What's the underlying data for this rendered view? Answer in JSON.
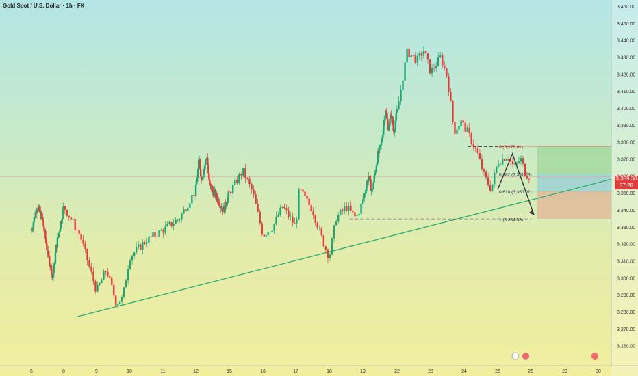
{
  "title": "Gold Spot / U.S. Dollar · 1h · FX",
  "colors": {
    "up": "#1ea672",
    "down": "#e23b3b",
    "trend": "#2eaa6f",
    "fib_zero": "#d9534f"
  },
  "chart_data": {
    "type": "candlestick",
    "title": "Gold Spot / U.S. Dollar · 1h · FX",
    "y_ticks": [
      "3,460.00",
      "3,450.00",
      "3,440.00",
      "3,430.00",
      "3,420.00",
      "3,410.00",
      "3,400.00",
      "3,390.00",
      "3,380.00",
      "3,370.00",
      "3,360.00",
      "3,350.00",
      "3,340.00",
      "3,330.00",
      "3,320.00",
      "3,310.00",
      "3,300.00",
      "3,290.00",
      "3,280.00",
      "3,270.00",
      "3,260.00"
    ],
    "x_ticks": [
      "5",
      "8",
      "9",
      "10",
      "11",
      "12",
      "15",
      "16",
      "17",
      "18",
      "19",
      "22",
      "23",
      "24",
      "25",
      "26",
      "29",
      "30"
    ],
    "ylim": [
      3255,
      3462
    ],
    "price_path": [
      {
        "d": 5.0,
        "p": 3328
      },
      {
        "d": 5.5,
        "p": 3342
      },
      {
        "d": 6.0,
        "p": 3335
      },
      {
        "d": 6.5,
        "p": 3315
      },
      {
        "d": 7.0,
        "p": 3300
      },
      {
        "d": 7.3,
        "p": 3318
      },
      {
        "d": 8.0,
        "p": 3342
      },
      {
        "d": 8.5,
        "p": 3325
      },
      {
        "d": 9.0,
        "p": 3292
      },
      {
        "d": 9.3,
        "p": 3305
      },
      {
        "d": 9.6,
        "p": 3285
      },
      {
        "d": 9.8,
        "p": 3288
      },
      {
        "d": 10.0,
        "p": 3312
      },
      {
        "d": 10.5,
        "p": 3322
      },
      {
        "d": 11.0,
        "p": 3328
      },
      {
        "d": 11.5,
        "p": 3335
      },
      {
        "d": 12.0,
        "p": 3352
      },
      {
        "d": 12.3,
        "p": 3370
      },
      {
        "d": 12.5,
        "p": 3358
      },
      {
        "d": 12.8,
        "p": 3366
      },
      {
        "d": 13.0,
        "p": 3372
      },
      {
        "d": 13.2,
        "p": 3355
      },
      {
        "d": 14.5,
        "p": 3340
      },
      {
        "d": 15.0,
        "p": 3350
      },
      {
        "d": 15.4,
        "p": 3363
      },
      {
        "d": 15.7,
        "p": 3350
      },
      {
        "d": 16.0,
        "p": 3325
      },
      {
        "d": 16.3,
        "p": 3330
      },
      {
        "d": 16.6,
        "p": 3342
      },
      {
        "d": 17.0,
        "p": 3330
      },
      {
        "d": 17.1,
        "p": 3352
      },
      {
        "d": 17.5,
        "p": 3340
      },
      {
        "d": 17.8,
        "p": 3322
      },
      {
        "d": 18.0,
        "p": 3312
      },
      {
        "d": 18.2,
        "p": 3335
      },
      {
        "d": 18.5,
        "p": 3342
      },
      {
        "d": 18.8,
        "p": 3335
      },
      {
        "d": 19.0,
        "p": 3345
      },
      {
        "d": 19.5,
        "p": 3360
      },
      {
        "d": 19.8,
        "p": 3350
      },
      {
        "d": 20.3,
        "p": 3372
      },
      {
        "d": 20.6,
        "p": 3378
      },
      {
        "d": 21.0,
        "p": 3400
      },
      {
        "d": 21.2,
        "p": 3388
      },
      {
        "d": 21.5,
        "p": 3396
      },
      {
        "d": 21.7,
        "p": 3386
      },
      {
        "d": 22.0,
        "p": 3398
      },
      {
        "d": 22.3,
        "p": 3433
      },
      {
        "d": 22.6,
        "p": 3428
      },
      {
        "d": 22.8,
        "p": 3434
      },
      {
        "d": 23.0,
        "p": 3421
      },
      {
        "d": 23.3,
        "p": 3430
      },
      {
        "d": 23.5,
        "p": 3418
      },
      {
        "d": 23.7,
        "p": 3386
      },
      {
        "d": 23.9,
        "p": 3392
      },
      {
        "d": 24.1,
        "p": 3386
      },
      {
        "d": 24.4,
        "p": 3373
      },
      {
        "d": 24.6,
        "p": 3360
      },
      {
        "d": 24.8,
        "p": 3352
      },
      {
        "d": 25.0,
        "p": 3368
      },
      {
        "d": 25.3,
        "p": 3372
      },
      {
        "d": 25.5,
        "p": 3365
      },
      {
        "d": 25.7,
        "p": 3370
      },
      {
        "d": 25.85,
        "p": 3361
      },
      {
        "d": 26.0,
        "p": 3359.38
      }
    ],
    "current_price": "3,359.38",
    "countdown": "37:28",
    "fib_levels": [
      {
        "label": "0 (3,377.41)",
        "value": 3377.41
      },
      {
        "label": "0.382 (3,361.03)",
        "value": 3361.03
      },
      {
        "label": "0.618 (3,350.91)",
        "value": 3350.91
      },
      {
        "label": "1 (3,334.53)",
        "value": 3334.53
      }
    ],
    "target_zone": {
      "top": 3377.41,
      "entry": 3361.03,
      "stop": 3350.91,
      "bottom": 3334.53
    },
    "projection": [
      {
        "d": 25.0,
        "p": 3352
      },
      {
        "d": 25.45,
        "p": 3373
      },
      {
        "d": 26.3,
        "p": 3337
      }
    ],
    "trend_line": {
      "from": {
        "d": 8.4,
        "p": 3277
      },
      "to": {
        "d": 31,
        "p": 3358
      }
    },
    "resistance_line": {
      "from_d": 24.1,
      "to_d": 25.7,
      "value": 3377.41
    },
    "support_line": {
      "from_d": 18.6,
      "to_d": 26.0,
      "value": 3334.53
    }
  }
}
